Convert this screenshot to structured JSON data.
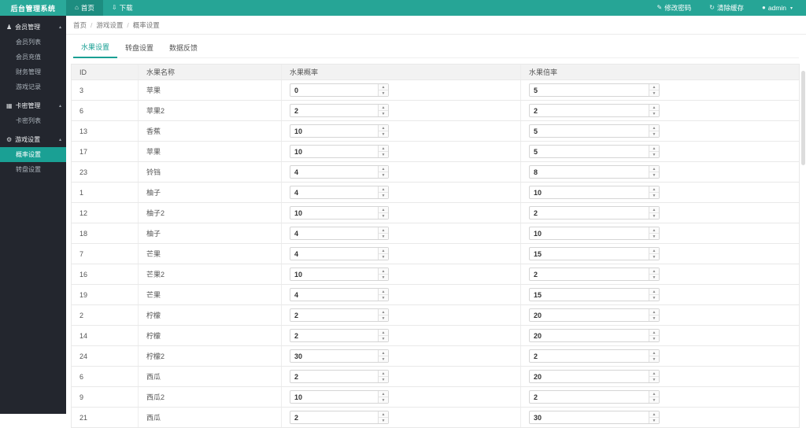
{
  "colors": {
    "accent": "#1aa094",
    "topbar": "#26a596",
    "topbar_active": "#1d8d80",
    "sidebar": "#23262e"
  },
  "topbar": {
    "logo": "后台管理系统",
    "nav": [
      {
        "label": "首页",
        "icon_name": "home-icon",
        "icon": "⌂",
        "variant": "active"
      },
      {
        "label": "下载",
        "icon_name": "download-icon",
        "icon": "⇩",
        "variant": "normal"
      }
    ],
    "right": [
      {
        "label": "修改密码",
        "icon_name": "edit-password-icon",
        "icon": "✎"
      },
      {
        "label": "清除缓存",
        "icon_name": "clear-cache-icon",
        "icon": "↻"
      },
      {
        "label": "admin",
        "icon_name": "user-icon",
        "icon": "●",
        "caret": "▾"
      }
    ]
  },
  "sidebar": {
    "items": [
      {
        "variant": "group",
        "icon_name": "users-icon",
        "icon": "♟",
        "label": "会员管理",
        "caret": "▴"
      },
      {
        "variant": "sub",
        "label": "会员列表"
      },
      {
        "variant": "sub",
        "label": "会员充值"
      },
      {
        "variant": "sub",
        "label": "财务管理"
      },
      {
        "variant": "sub",
        "label": "游戏记录"
      },
      {
        "variant": "group",
        "icon_name": "card-icon",
        "icon": "▦",
        "label": "卡密管理",
        "caret": "▴"
      },
      {
        "variant": "sub",
        "label": "卡密列表"
      },
      {
        "variant": "group",
        "icon_name": "gear-icon",
        "icon": "⚙",
        "label": "游戏设置",
        "caret": "▴"
      },
      {
        "variant": "sub-active",
        "label": "概率设置"
      },
      {
        "variant": "sub",
        "label": "转盘设置"
      }
    ]
  },
  "breadcrumb": {
    "items": [
      "首页",
      "游戏设置",
      "概率设置"
    ],
    "separator": "/"
  },
  "tabs": [
    {
      "label": "水果设置",
      "variant": "active"
    },
    {
      "label": "转盘设置",
      "variant": "normal"
    },
    {
      "label": "数据反馈",
      "variant": "normal"
    }
  ],
  "table": {
    "headers": {
      "id": "ID",
      "name": "水果名称",
      "prob": "水果概率",
      "mult": "水果倍率"
    },
    "rows": [
      {
        "id": "3",
        "name": "苹果",
        "prob": "0",
        "mult": "5"
      },
      {
        "id": "6",
        "name": "苹果2",
        "prob": "2",
        "mult": "2"
      },
      {
        "id": "13",
        "name": "香蕉",
        "prob": "10",
        "mult": "5"
      },
      {
        "id": "17",
        "name": "苹果",
        "prob": "10",
        "mult": "5"
      },
      {
        "id": "23",
        "name": "铃铛",
        "prob": "4",
        "mult": "8"
      },
      {
        "id": "1",
        "name": "柚子",
        "prob": "4",
        "mult": "10"
      },
      {
        "id": "12",
        "name": "柚子2",
        "prob": "10",
        "mult": "2"
      },
      {
        "id": "18",
        "name": "柚子",
        "prob": "4",
        "mult": "10"
      },
      {
        "id": "7",
        "name": "芒果",
        "prob": "4",
        "mult": "15"
      },
      {
        "id": "16",
        "name": "芒果2",
        "prob": "10",
        "mult": "2"
      },
      {
        "id": "19",
        "name": "芒果",
        "prob": "4",
        "mult": "15"
      },
      {
        "id": "2",
        "name": "柠檬",
        "prob": "2",
        "mult": "20"
      },
      {
        "id": "14",
        "name": "柠檬",
        "prob": "2",
        "mult": "20"
      },
      {
        "id": "24",
        "name": "柠檬2",
        "prob": "30",
        "mult": "2"
      },
      {
        "id": "6",
        "name": "西瓜",
        "prob": "2",
        "mult": "20"
      },
      {
        "id": "9",
        "name": "西瓜2",
        "prob": "10",
        "mult": "2"
      },
      {
        "id": "21",
        "name": "西瓜",
        "prob": "2",
        "mult": "30"
      }
    ]
  }
}
